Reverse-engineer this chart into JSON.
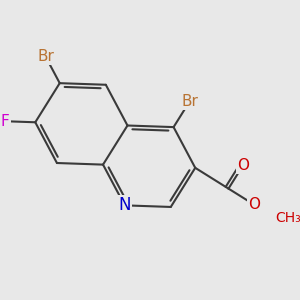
{
  "background_color": "#e8e8e8",
  "bond_color": "#3a3a3a",
  "bond_width": 1.5,
  "atom_colors": {
    "Br": "#b87333",
    "F": "#d000d0",
    "N": "#0000cc",
    "O": "#cc0000",
    "C": "#3a3a3a"
  },
  "font_size_atom": 11,
  "font_size_me": 10
}
